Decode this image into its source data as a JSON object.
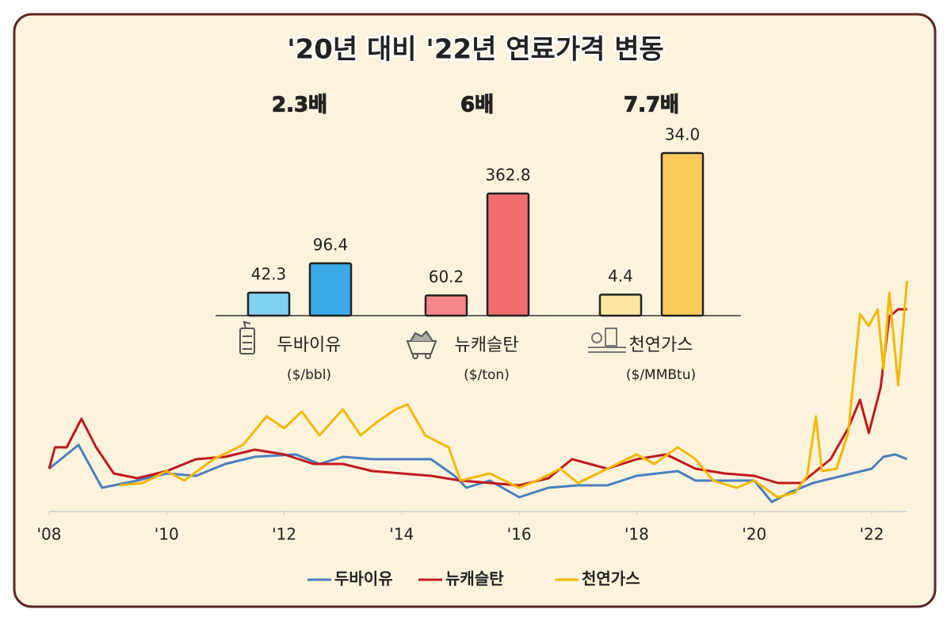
{
  "chart_data": [
    {
      "type": "bar",
      "title": "'20년 대비 '22년 연료가격 변동",
      "categories": [
        "두바이유",
        "뉴캐슬탄",
        "천연가스"
      ],
      "units": [
        "($/bbl)",
        "($/ton)",
        "($/MMBtu)"
      ],
      "ratios": [
        "2.3배",
        "6배",
        "7.7배"
      ],
      "ratio_colors": [
        "#5bb8ea",
        "#ef6b6b",
        "#f3b44a"
      ],
      "series": [
        {
          "colors": [
            "#7fd0f5",
            "#f4878b",
            "#fde79e"
          ],
          "values": [
            42.3,
            60.2,
            4.4
          ]
        },
        {
          "colors": [
            "#3aa9e6",
            "#f06e6e",
            "#fcca5a"
          ],
          "values": [
            96.4,
            362.8,
            34.0
          ],
          "value_labels": [
            "96.4",
            "362.8",
            "34.0"
          ]
        }
      ]
    },
    {
      "type": "line",
      "xlim": [
        2008,
        2022.6
      ],
      "ylim": [
        0,
        100
      ],
      "xticks": [
        {
          "value": 2008,
          "label": "'08"
        },
        {
          "value": 2010,
          "label": "'10"
        },
        {
          "value": 2012,
          "label": "'12"
        },
        {
          "value": 2014,
          "label": "'14"
        },
        {
          "value": 2016,
          "label": "'16"
        },
        {
          "value": 2018,
          "label": "'18"
        },
        {
          "value": 2020,
          "label": "'20"
        },
        {
          "value": 2022,
          "label": "'22"
        }
      ],
      "series": [
        {
          "name": "두바이유",
          "color": "#4a7fc0",
          "x": [
            2008,
            2008.5,
            2008.9,
            2009.5,
            2010,
            2010.5,
            2011,
            2011.5,
            2012.2,
            2012.6,
            2013,
            2013.5,
            2014.5,
            2014.9,
            2015.1,
            2015.5,
            2016,
            2016.5,
            2017,
            2017.5,
            2018,
            2018.7,
            2019,
            2019.5,
            2020,
            2020.3,
            2020.6,
            2021,
            2021.5,
            2022,
            2022.2,
            2022.4,
            2022.6
          ],
          "values": [
            18,
            28,
            10,
            13,
            16,
            15,
            20,
            23,
            24,
            20,
            23,
            22,
            22,
            15,
            10,
            13,
            6,
            10,
            11,
            11,
            15,
            17,
            13,
            13,
            13,
            4,
            8,
            12,
            15,
            18,
            23,
            24,
            22
          ]
        },
        {
          "name": "뉴캐슬탄",
          "color": "#c0181e",
          "x": [
            2008,
            2008.1,
            2008.3,
            2008.55,
            2008.8,
            2009.1,
            2009.5,
            2010,
            2010.5,
            2011,
            2011.5,
            2012,
            2012.5,
            2013,
            2013.5,
            2014,
            2014.5,
            2015,
            2015.5,
            2016,
            2016.5,
            2016.9,
            2017.5,
            2018,
            2018.5,
            2019,
            2019.5,
            2020,
            2020.4,
            2020.8,
            2021,
            2021.3,
            2021.6,
            2021.8,
            2021.95,
            2022.15,
            2022.3,
            2022.45,
            2022.6
          ],
          "values": [
            18,
            27,
            27,
            39,
            27,
            16,
            14,
            17,
            22,
            23,
            26,
            24,
            20,
            20,
            17,
            16,
            15,
            13,
            12,
            11,
            14,
            22,
            18,
            22,
            24,
            18,
            16,
            15,
            12,
            12,
            16,
            22,
            35,
            47,
            33,
            52,
            82,
            85,
            85
          ]
        },
        {
          "name": "천연가스",
          "color": "#f5b800",
          "x": [
            2009.2,
            2009.6,
            2010,
            2010.3,
            2010.8,
            2011.3,
            2011.7,
            2012,
            2012.3,
            2012.6,
            2013,
            2013.3,
            2013.6,
            2013.9,
            2014.1,
            2014.4,
            2014.8,
            2015,
            2015.5,
            2016,
            2016.3,
            2016.7,
            2017,
            2017.5,
            2018,
            2018.3,
            2018.7,
            2019,
            2019.3,
            2019.7,
            2020,
            2020.4,
            2020.7,
            2020.9,
            2021.05,
            2021.15,
            2021.4,
            2021.6,
            2021.8,
            2021.95,
            2022.1,
            2022.2,
            2022.3,
            2022.45,
            2022.6
          ],
          "values": [
            11,
            12,
            17,
            13,
            22,
            28,
            40,
            35,
            42,
            32,
            43,
            32,
            38,
            43,
            45,
            32,
            27,
            13,
            16,
            10,
            13,
            18,
            12,
            18,
            24,
            20,
            27,
            22,
            13,
            10,
            13,
            6,
            8,
            15,
            40,
            17,
            18,
            33,
            83,
            78,
            85,
            60,
            92,
            53,
            97
          ]
        }
      ]
    }
  ]
}
